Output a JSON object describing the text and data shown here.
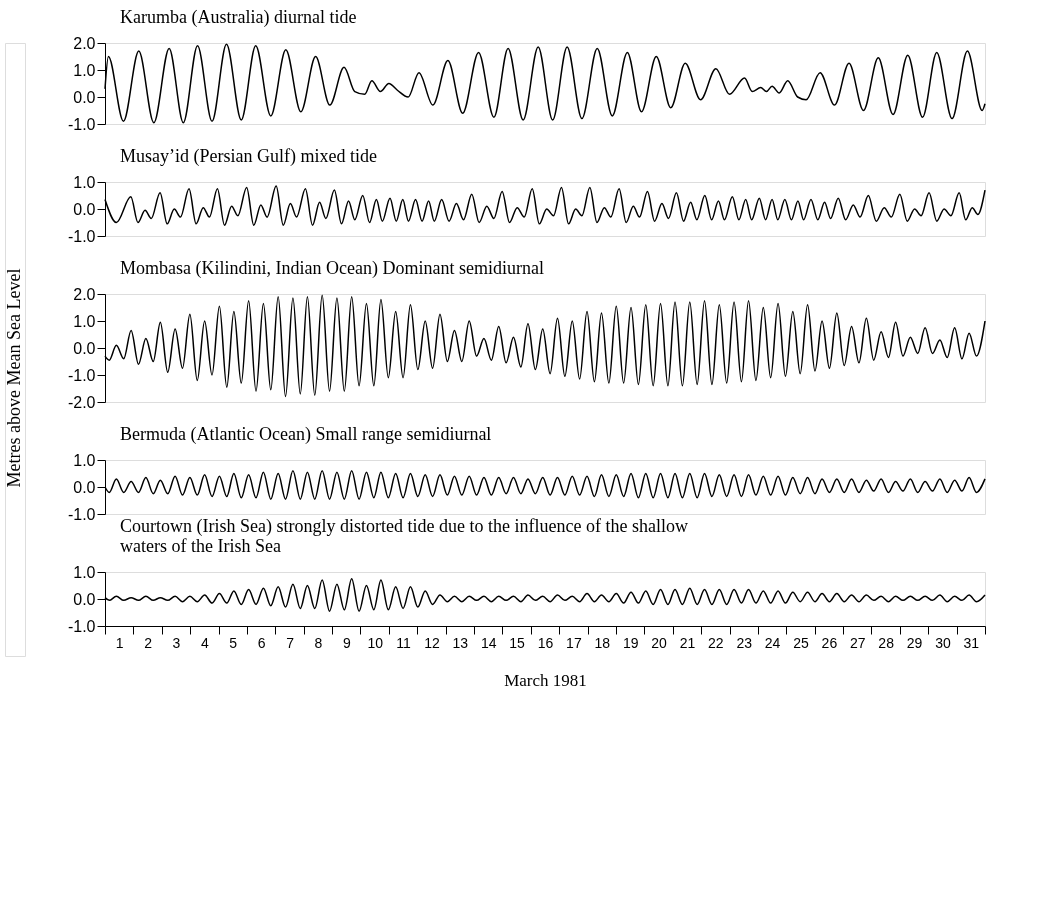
{
  "chart_data": [
    {
      "type": "line",
      "title": "Karumba (Australia) diurnal tide",
      "color": "#000000",
      "tick_labels": "y",
      "xlim": [
        0.5,
        31.5
      ],
      "ylim": [
        -1,
        2
      ],
      "yticks": [
        {
          "value": -1,
          "label": "-1.0"
        },
        {
          "value": 0,
          "label": "0.0"
        },
        {
          "value": 1,
          "label": "1.0"
        },
        {
          "value": 2,
          "label": "2.0"
        }
      ],
      "x": [
        0.5,
        0.62,
        1.15,
        1.69,
        2.22,
        2.76,
        3.26,
        3.76,
        4.27,
        4.78,
        5.3,
        5.81,
        6.34,
        6.87,
        7.4,
        7.92,
        8.42,
        8.92,
        9.3,
        9.65,
        9.9,
        10.2,
        10.5,
        10.8,
        11.18,
        11.56,
        12.05,
        12.58,
        13.1,
        13.66,
        14.2,
        14.7,
        15.23,
        15.76,
        16.27,
        16.78,
        17.3,
        17.84,
        18.37,
        18.9,
        19.4,
        19.92,
        20.43,
        20.94,
        21.48,
        22.02,
        22.5,
        23.03,
        23.3,
        23.6,
        23.8,
        24.0,
        24.25,
        24.55,
        24.9,
        25.2,
        25.69,
        26.2,
        26.71,
        27.22,
        27.74,
        28.26,
        28.78,
        29.3,
        29.8,
        30.34,
        30.88,
        31.4,
        31.5
      ],
      "values": [
        0.3,
        1.5,
        -0.9,
        1.7,
        -0.95,
        1.8,
        -0.95,
        1.9,
        -0.9,
        1.95,
        -0.85,
        1.9,
        -0.7,
        1.75,
        -0.55,
        1.5,
        -0.3,
        1.1,
        0.2,
        0.1,
        0.6,
        0.2,
        0.5,
        0.25,
        0.0,
        0.9,
        -0.3,
        1.35,
        -0.6,
        1.65,
        -0.75,
        1.8,
        -0.85,
        1.85,
        -0.85,
        1.85,
        -0.8,
        1.8,
        -0.7,
        1.65,
        -0.55,
        1.5,
        -0.4,
        1.25,
        -0.1,
        1.05,
        0.1,
        0.7,
        0.2,
        0.35,
        0.2,
        0.4,
        0.15,
        0.6,
        0.0,
        -0.1,
        0.9,
        -0.3,
        1.25,
        -0.5,
        1.45,
        -0.65,
        1.55,
        -0.75,
        1.65,
        -0.8,
        1.7,
        -0.5,
        -0.25
      ]
    },
    {
      "type": "line",
      "title": "Musay’id (Persian Gulf) mixed tide",
      "color": "#000000",
      "tick_labels": "y",
      "xlim": [
        0.5,
        31.5
      ],
      "ylim": [
        -1,
        1
      ],
      "yticks": [
        {
          "value": -1,
          "label": "-1.0"
        },
        {
          "value": 0,
          "label": "0.0"
        },
        {
          "value": 1,
          "label": "1.0"
        }
      ],
      "x": [
        0.5,
        0.9,
        1.41,
        1.66,
        1.91,
        2.13,
        2.44,
        2.69,
        2.94,
        3.16,
        3.46,
        3.71,
        3.96,
        4.18,
        4.46,
        4.71,
        4.96,
        5.18,
        5.49,
        5.74,
        5.99,
        6.21,
        6.53,
        6.78,
        7.03,
        7.25,
        7.56,
        7.81,
        8.06,
        8.28,
        8.58,
        8.83,
        9.08,
        9.3,
        9.58,
        9.82,
        10.06,
        10.27,
        10.54,
        10.76,
        10.99,
        11.19,
        11.44,
        11.67,
        11.9,
        12.1,
        12.36,
        12.62,
        12.88,
        13.13,
        13.42,
        13.68,
        13.95,
        14.2,
        14.49,
        14.75,
        15.02,
        15.27,
        15.55,
        15.8,
        16.06,
        16.3,
        16.58,
        16.83,
        17.08,
        17.3,
        17.58,
        17.83,
        18.09,
        18.32,
        18.61,
        18.86,
        19.11,
        19.33,
        19.61,
        19.86,
        20.12,
        20.35,
        20.63,
        20.88,
        21.13,
        21.35,
        21.63,
        21.87,
        22.11,
        22.32,
        22.6,
        22.83,
        23.07,
        23.28,
        23.55,
        23.77,
        24.0,
        24.2,
        24.45,
        24.68,
        24.91,
        25.11,
        25.37,
        25.61,
        25.85,
        26.06,
        26.33,
        26.59,
        26.86,
        27.1,
        27.39,
        27.67,
        27.95,
        28.2,
        28.5,
        28.76,
        29.02,
        29.25,
        29.53,
        29.8,
        30.06,
        30.3,
        30.59,
        30.82,
        31.05,
        31.25,
        31.5
      ],
      "values": [
        0.35,
        -0.5,
        0.45,
        -0.5,
        -0.05,
        -0.35,
        0.6,
        -0.55,
        0.0,
        -0.3,
        0.75,
        -0.55,
        0.05,
        -0.3,
        0.75,
        -0.6,
        0.1,
        -0.25,
        0.8,
        -0.6,
        0.15,
        -0.3,
        0.85,
        -0.6,
        0.2,
        -0.3,
        0.75,
        -0.6,
        0.25,
        -0.35,
        0.7,
        -0.55,
        0.3,
        -0.4,
        0.5,
        -0.5,
        0.35,
        -0.45,
        0.4,
        -0.45,
        0.35,
        -0.45,
        0.35,
        -0.45,
        0.3,
        -0.45,
        0.35,
        -0.45,
        0.2,
        -0.4,
        0.55,
        -0.5,
        0.1,
        -0.35,
        0.65,
        -0.5,
        0.05,
        -0.3,
        0.75,
        -0.55,
        0.0,
        -0.25,
        0.8,
        -0.55,
        0.0,
        -0.25,
        0.8,
        -0.5,
        0.05,
        -0.3,
        0.75,
        -0.5,
        0.1,
        -0.3,
        0.65,
        -0.45,
        0.2,
        -0.35,
        0.6,
        -0.45,
        0.25,
        -0.4,
        0.5,
        -0.4,
        0.3,
        -0.4,
        0.45,
        -0.4,
        0.35,
        -0.4,
        0.4,
        -0.4,
        0.35,
        -0.4,
        0.35,
        -0.4,
        0.3,
        -0.4,
        0.35,
        -0.4,
        0.25,
        -0.35,
        0.4,
        -0.4,
        0.15,
        -0.3,
        0.5,
        -0.45,
        0.05,
        -0.3,
        0.55,
        -0.45,
        0.0,
        -0.25,
        0.6,
        -0.45,
        0.0,
        -0.25,
        0.6,
        -0.4,
        0.05,
        -0.2,
        0.7
      ]
    },
    {
      "type": "line",
      "title": "Mombasa (Kilindini, Indian Ocean) Dominant semidiurnal",
      "ylabel": "Metres above Mean Sea Level",
      "color": "#000000",
      "tick_labels": "y",
      "xlim": [
        0.5,
        31.5
      ],
      "ylim": [
        -2,
        2
      ],
      "yticks": [
        {
          "value": -2,
          "label": "-2.0"
        },
        {
          "value": -1,
          "label": "-1.0"
        },
        {
          "value": 0,
          "label": "0.0"
        },
        {
          "value": 1,
          "label": "1.0"
        },
        {
          "value": 2,
          "label": "2.0"
        }
      ],
      "x": [
        0.5,
        0.65,
        0.9,
        1.16,
        1.42,
        1.68,
        1.94,
        2.2,
        2.45,
        2.71,
        2.97,
        3.23,
        3.49,
        3.75,
        4.01,
        4.27,
        4.53,
        4.79,
        5.04,
        5.3,
        5.56,
        5.82,
        6.08,
        6.34,
        6.6,
        6.86,
        7.12,
        7.38,
        7.63,
        7.89,
        8.15,
        8.41,
        8.67,
        8.93,
        9.19,
        9.45,
        9.71,
        9.97,
        10.22,
        10.48,
        10.74,
        11.0,
        11.26,
        11.52,
        11.78,
        12.04,
        12.3,
        12.56,
        12.81,
        13.07,
        13.33,
        13.59,
        13.85,
        14.11,
        14.37,
        14.63,
        14.89,
        15.15,
        15.4,
        15.66,
        15.92,
        16.18,
        16.44,
        16.7,
        16.96,
        17.22,
        17.48,
        17.74,
        17.99,
        18.25,
        18.51,
        18.77,
        19.03,
        19.29,
        19.55,
        19.81,
        20.07,
        20.33,
        20.58,
        20.84,
        21.1,
        21.36,
        21.62,
        21.88,
        22.14,
        22.4,
        22.66,
        22.92,
        23.17,
        23.43,
        23.69,
        23.95,
        24.21,
        24.47,
        24.73,
        24.99,
        25.25,
        25.51,
        25.76,
        26.02,
        26.28,
        26.54,
        26.8,
        27.06,
        27.32,
        27.58,
        27.84,
        28.1,
        28.35,
        28.61,
        28.87,
        29.13,
        29.39,
        29.65,
        29.91,
        30.17,
        30.43,
        30.69,
        30.94,
        31.2,
        31.5
      ],
      "values": [
        -0.3,
        -0.45,
        0.1,
        -0.4,
        0.65,
        -0.6,
        0.35,
        -0.5,
        0.95,
        -0.9,
        0.7,
        -0.75,
        1.25,
        -1.2,
        1.0,
        -1.0,
        1.55,
        -1.45,
        1.35,
        -1.3,
        1.75,
        -1.6,
        1.65,
        -1.55,
        1.9,
        -1.8,
        1.85,
        -1.7,
        1.9,
        -1.75,
        1.95,
        -1.6,
        1.85,
        -1.6,
        1.9,
        -1.4,
        1.65,
        -1.4,
        1.8,
        -1.1,
        1.35,
        -1.1,
        1.6,
        -0.8,
        1.0,
        -0.75,
        1.25,
        -0.5,
        0.65,
        -0.5,
        1.0,
        -0.3,
        0.35,
        -0.45,
        0.8,
        -0.55,
        0.4,
        -0.7,
        0.9,
        -0.8,
        0.7,
        -0.95,
        1.1,
        -1.05,
        1.0,
        -1.15,
        1.35,
        -1.25,
        1.3,
        -1.3,
        1.55,
        -1.3,
        1.5,
        -1.35,
        1.6,
        -1.4,
        1.65,
        -1.4,
        1.7,
        -1.4,
        1.7,
        -1.35,
        1.75,
        -1.35,
        1.6,
        -1.3,
        1.7,
        -1.25,
        1.75,
        -1.2,
        1.5,
        -1.1,
        1.65,
        -1.05,
        1.35,
        -0.95,
        1.6,
        -0.85,
        1.0,
        -0.75,
        1.3,
        -0.65,
        0.8,
        -0.55,
        1.1,
        -0.45,
        0.6,
        -0.35,
        0.95,
        -0.3,
        0.4,
        -0.2,
        0.75,
        -0.2,
        0.3,
        -0.35,
        0.75,
        -0.4,
        0.55,
        -0.3,
        1.0
      ]
    },
    {
      "type": "line",
      "title": "Bermuda (Atlantic Ocean) Small range semidiurnal",
      "color": "#000000",
      "tick_labels": "y",
      "xlim": [
        0.5,
        31.5
      ],
      "ylim": [
        -1,
        1
      ],
      "yticks": [
        {
          "value": -1,
          "label": "-1.0"
        },
        {
          "value": 0,
          "label": "0.0"
        },
        {
          "value": 1,
          "label": "1.0"
        }
      ],
      "x": [
        0.5,
        0.65,
        0.9,
        1.16,
        1.42,
        1.68,
        1.94,
        2.2,
        2.45,
        2.71,
        2.97,
        3.23,
        3.49,
        3.75,
        4.01,
        4.27,
        4.53,
        4.79,
        5.04,
        5.3,
        5.56,
        5.82,
        6.08,
        6.34,
        6.6,
        6.86,
        7.12,
        7.38,
        7.63,
        7.89,
        8.15,
        8.41,
        8.67,
        8.93,
        9.19,
        9.45,
        9.71,
        9.97,
        10.22,
        10.48,
        10.74,
        11.0,
        11.26,
        11.52,
        11.78,
        12.04,
        12.3,
        12.56,
        12.81,
        13.07,
        13.33,
        13.59,
        13.85,
        14.11,
        14.37,
        14.63,
        14.89,
        15.15,
        15.4,
        15.66,
        15.92,
        16.18,
        16.44,
        16.7,
        16.96,
        17.22,
        17.48,
        17.74,
        17.99,
        18.25,
        18.51,
        18.77,
        19.03,
        19.29,
        19.55,
        19.81,
        20.07,
        20.33,
        20.58,
        20.84,
        21.1,
        21.36,
        21.62,
        21.88,
        22.14,
        22.4,
        22.66,
        22.92,
        23.17,
        23.43,
        23.69,
        23.95,
        24.21,
        24.47,
        24.73,
        24.99,
        25.25,
        25.51,
        25.76,
        26.02,
        26.28,
        26.54,
        26.8,
        27.06,
        27.32,
        27.58,
        27.84,
        28.1,
        28.35,
        28.61,
        28.87,
        29.13,
        29.39,
        29.65,
        29.91,
        30.17,
        30.43,
        30.69,
        30.94,
        31.2,
        31.5
      ],
      "values": [
        0.0,
        -0.2,
        0.3,
        -0.2,
        0.2,
        -0.2,
        0.35,
        -0.25,
        0.25,
        -0.25,
        0.4,
        -0.3,
        0.35,
        -0.3,
        0.45,
        -0.35,
        0.4,
        -0.35,
        0.5,
        -0.4,
        0.45,
        -0.4,
        0.55,
        -0.45,
        0.5,
        -0.45,
        0.6,
        -0.45,
        0.55,
        -0.45,
        0.6,
        -0.45,
        0.55,
        -0.45,
        0.6,
        -0.45,
        0.55,
        -0.4,
        0.55,
        -0.4,
        0.5,
        -0.4,
        0.5,
        -0.35,
        0.45,
        -0.35,
        0.45,
        -0.3,
        0.4,
        -0.3,
        0.4,
        -0.3,
        0.35,
        -0.3,
        0.35,
        -0.25,
        0.35,
        -0.25,
        0.3,
        -0.25,
        0.35,
        -0.3,
        0.35,
        -0.3,
        0.4,
        -0.3,
        0.4,
        -0.35,
        0.45,
        -0.35,
        0.45,
        -0.35,
        0.5,
        -0.4,
        0.5,
        -0.4,
        0.5,
        -0.4,
        0.5,
        -0.4,
        0.5,
        -0.4,
        0.5,
        -0.35,
        0.45,
        -0.35,
        0.45,
        -0.35,
        0.45,
        -0.3,
        0.4,
        -0.3,
        0.4,
        -0.3,
        0.35,
        -0.25,
        0.35,
        -0.25,
        0.3,
        -0.2,
        0.3,
        -0.2,
        0.3,
        -0.2,
        0.25,
        -0.15,
        0.3,
        -0.2,
        0.2,
        -0.15,
        0.3,
        -0.2,
        0.2,
        -0.15,
        0.3,
        -0.2,
        0.25,
        -0.15,
        0.35,
        -0.2,
        0.3
      ]
    },
    {
      "type": "line",
      "title": "Courtown (Irish Sea) strongly distorted tide due to the influence of the shallow waters of the Irish Sea",
      "xlabel": "March 1981",
      "color": "#000000",
      "xlim": [
        0.5,
        31.5
      ],
      "ylim": [
        -1,
        1
      ],
      "yticks": [
        {
          "value": -1,
          "label": "-1.0"
        },
        {
          "value": 0,
          "label": "0.0"
        },
        {
          "value": 1,
          "label": "1.0"
        }
      ],
      "xticks": [
        {
          "value": 0.5,
          "label": null
        },
        1,
        {
          "value": 1.5,
          "label": null
        },
        2,
        {
          "value": 2.5,
          "label": null
        },
        3,
        {
          "value": 3.5,
          "label": null
        },
        4,
        {
          "value": 4.5,
          "label": null
        },
        5,
        {
          "value": 5.5,
          "label": null
        },
        6,
        {
          "value": 6.5,
          "label": null
        },
        7,
        {
          "value": 7.5,
          "label": null
        },
        8,
        {
          "value": 8.5,
          "label": null
        },
        9,
        {
          "value": 9.5,
          "label": null
        },
        10,
        {
          "value": 10.5,
          "label": null
        },
        11,
        {
          "value": 11.5,
          "label": null
        },
        12,
        {
          "value": 12.5,
          "label": null
        },
        13,
        {
          "value": 13.5,
          "label": null
        },
        14,
        {
          "value": 14.5,
          "label": null
        },
        15,
        {
          "value": 15.5,
          "label": null
        },
        16,
        {
          "value": 16.5,
          "label": null
        },
        17,
        {
          "value": 17.5,
          "label": null
        },
        18,
        {
          "value": 18.5,
          "label": null
        },
        19,
        {
          "value": 19.5,
          "label": null
        },
        20,
        {
          "value": 20.5,
          "label": null
        },
        21,
        {
          "value": 21.5,
          "label": null
        },
        22,
        {
          "value": 22.5,
          "label": null
        },
        23,
        {
          "value": 23.5,
          "label": null
        },
        24,
        {
          "value": 24.5,
          "label": null
        },
        25,
        {
          "value": 25.5,
          "label": null
        },
        26,
        {
          "value": 26.5,
          "label": null
        },
        27,
        {
          "value": 27.5,
          "label": null
        },
        28,
        {
          "value": 28.5,
          "label": null
        },
        29,
        {
          "value": 29.5,
          "label": null
        },
        30,
        {
          "value": 30.5,
          "label": null
        },
        31,
        {
          "value": 31.5,
          "label": null
        }
      ],
      "x": [
        0.5,
        0.65,
        0.9,
        1.16,
        1.42,
        1.68,
        1.94,
        2.2,
        2.45,
        2.71,
        2.97,
        3.23,
        3.49,
        3.75,
        4.01,
        4.27,
        4.53,
        4.79,
        5.04,
        5.3,
        5.56,
        5.82,
        6.08,
        6.34,
        6.6,
        6.86,
        7.12,
        7.38,
        7.63,
        7.89,
        8.15,
        8.41,
        8.67,
        8.93,
        9.19,
        9.45,
        9.71,
        9.97,
        10.22,
        10.48,
        10.74,
        11.0,
        11.26,
        11.52,
        11.78,
        12.04,
        12.3,
        12.56,
        12.81,
        13.07,
        13.33,
        13.59,
        13.85,
        14.11,
        14.37,
        14.63,
        14.89,
        15.15,
        15.4,
        15.66,
        15.92,
        16.18,
        16.44,
        16.7,
        16.96,
        17.22,
        17.48,
        17.74,
        17.99,
        18.25,
        18.51,
        18.77,
        19.03,
        19.29,
        19.55,
        19.81,
        20.07,
        20.33,
        20.58,
        20.84,
        21.1,
        21.36,
        21.62,
        21.88,
        22.14,
        22.4,
        22.66,
        22.92,
        23.17,
        23.43,
        23.69,
        23.95,
        24.21,
        24.47,
        24.73,
        24.99,
        25.25,
        25.51,
        25.76,
        26.02,
        26.28,
        26.54,
        26.8,
        27.06,
        27.32,
        27.58,
        27.84,
        28.1,
        28.35,
        28.61,
        28.87,
        29.13,
        29.39,
        29.65,
        29.91,
        30.17,
        30.43,
        30.69,
        30.94,
        31.2,
        31.5
      ],
      "values": [
        0.05,
        -0.05,
        0.1,
        -0.05,
        0.05,
        -0.05,
        0.1,
        -0.05,
        0.05,
        -0.05,
        0.1,
        -0.1,
        0.1,
        -0.1,
        0.15,
        -0.15,
        0.2,
        -0.15,
        0.3,
        -0.2,
        0.35,
        -0.2,
        0.4,
        -0.25,
        0.45,
        -0.3,
        0.55,
        -0.35,
        0.5,
        -0.35,
        0.7,
        -0.45,
        0.55,
        -0.4,
        0.75,
        -0.45,
        0.5,
        -0.4,
        0.7,
        -0.4,
        0.45,
        -0.35,
        0.45,
        -0.3,
        0.3,
        -0.2,
        0.15,
        -0.1,
        0.1,
        -0.1,
        0.1,
        -0.05,
        0.1,
        -0.1,
        0.1,
        -0.05,
        0.1,
        -0.1,
        0.15,
        -0.05,
        0.1,
        -0.1,
        0.15,
        -0.05,
        0.1,
        -0.1,
        0.2,
        -0.1,
        0.15,
        -0.1,
        0.2,
        -0.15,
        0.25,
        -0.15,
        0.3,
        -0.2,
        0.35,
        -0.2,
        0.35,
        -0.2,
        0.4,
        -0.2,
        0.35,
        -0.2,
        0.35,
        -0.2,
        0.35,
        -0.15,
        0.35,
        -0.15,
        0.3,
        -0.15,
        0.3,
        -0.15,
        0.25,
        -0.1,
        0.25,
        -0.1,
        0.2,
        -0.1,
        0.2,
        -0.1,
        0.15,
        -0.1,
        0.15,
        -0.05,
        0.1,
        -0.1,
        0.1,
        -0.05,
        0.1,
        -0.05,
        0.1,
        -0.05,
        0.15,
        -0.1,
        0.1,
        -0.05,
        0.15,
        -0.1,
        0.15
      ]
    }
  ]
}
